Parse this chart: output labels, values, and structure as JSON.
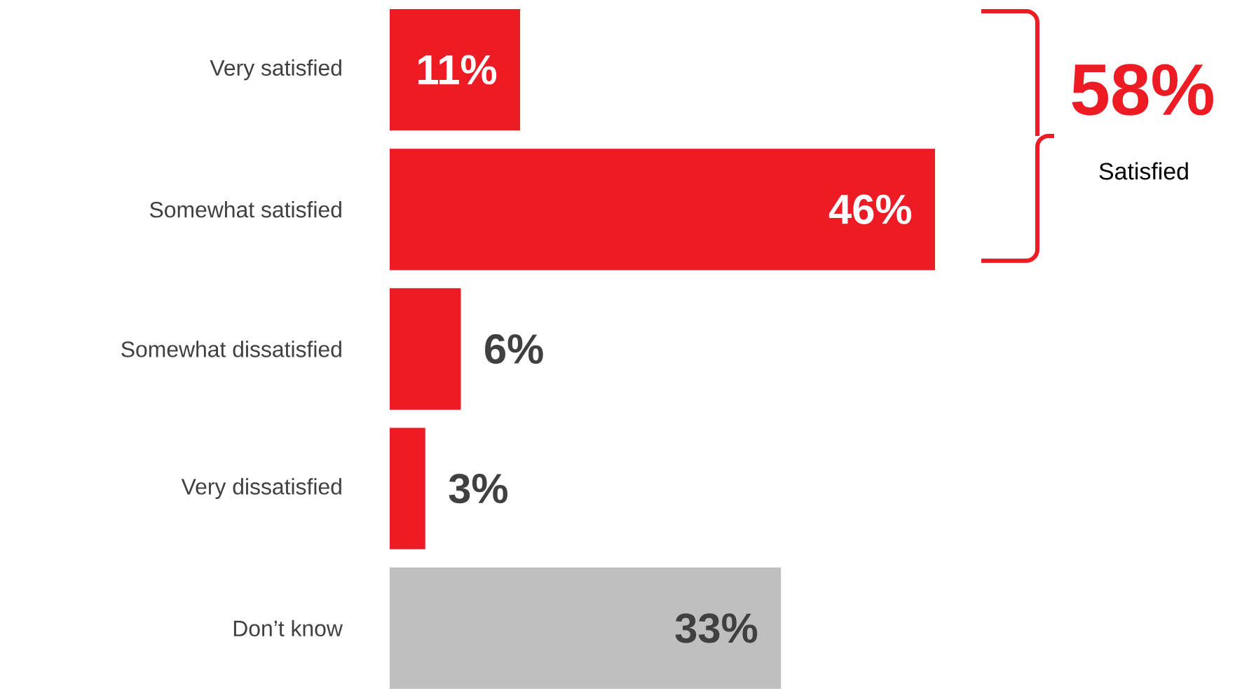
{
  "chart_data": {
    "type": "bar",
    "orientation": "horizontal",
    "categories": [
      "Very satisfied",
      "Somewhat satisfied",
      "Somewhat dissatisfied",
      "Very dissatisfied",
      "Don’t know"
    ],
    "values": [
      11,
      46,
      6,
      3,
      33
    ],
    "colors": [
      "#ed1c24",
      "#ed1c24",
      "#ed1c24",
      "#ed1c24",
      "#bfbfbf"
    ],
    "value_labels": [
      "11%",
      "46%",
      "6%",
      "3%",
      "33%"
    ],
    "annotations": [
      "58%",
      "Satisfied"
    ]
  }
}
